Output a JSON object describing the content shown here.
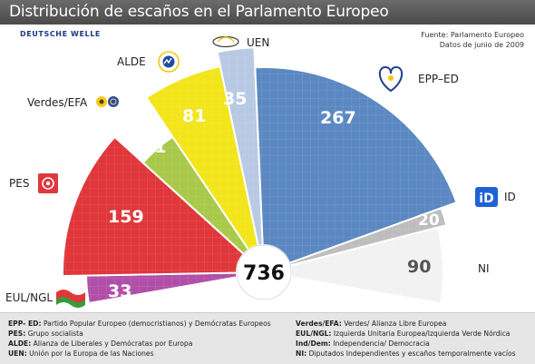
{
  "title": "Distribución de escaños en el Parlamento Europeo",
  "publisher": "DEUTSCHE WELLE",
  "source": [
    "Fuente: Parlamento Europeo",
    "Datos de junio de 2009"
  ],
  "chart_data": {
    "type": "pie",
    "title": "Distribución de escaños en el Parlamento Europeo",
    "total": 736,
    "total_label": "736",
    "series": [
      {
        "name": "EUL/NGL",
        "value": 33,
        "label": "33",
        "color": "#b14fa8"
      },
      {
        "name": "PES",
        "value": 159,
        "label": "159",
        "color": "#e0373a"
      },
      {
        "name": "Verdes/EFA",
        "value": 51,
        "label": "51",
        "color": "#a9c94a"
      },
      {
        "name": "ALDE",
        "value": 81,
        "label": "81",
        "color": "#f2e51a"
      },
      {
        "name": "UEN",
        "value": 35,
        "label": "35",
        "color": "#b8c9e3"
      },
      {
        "name": "EPP–ED",
        "value": 267,
        "label": "267",
        "color": "#5b88c1"
      },
      {
        "name": "ID",
        "value": 20,
        "label": "20",
        "color": "#bdbdbd"
      },
      {
        "name": "NI",
        "value": 90,
        "label": "90",
        "color": "#f2f2f2"
      }
    ]
  },
  "legend": {
    "col1": [
      {
        "abbr": "EPP- ED:",
        "text": "Partido Popular Europeo (democristianos) y Demócratas Europeos"
      },
      {
        "abbr": "PES:",
        "text": "Grupo socialista"
      },
      {
        "abbr": "ALDE:",
        "text": "Alianza de Liberales y Demócratas por Europa"
      },
      {
        "abbr": "UEN:",
        "text": "Unión por la Europa de las Naciones"
      }
    ],
    "col2": [
      {
        "abbr": "Verdes/EFA:",
        "text": "Verdes/ Alianza Libre Europea"
      },
      {
        "abbr": "EUL/NGL:",
        "text": "Izquierda Unitaria Europea/Izquierda Verde Nórdica"
      },
      {
        "abbr": "Ind/Dem:",
        "text": "Independencia/ Democracia"
      },
      {
        "abbr": "NI:",
        "text": "Diputados Independientes y escaños temporalmente vacíos"
      }
    ]
  },
  "logos": {
    "pes": "PES rose logo",
    "greens": "Greens sunflower logo",
    "alde": "ALDE logo",
    "uen": "UEN logo",
    "epp": "EPP heart logo",
    "id": "iD logo",
    "eul": "EUL/NGL flag logo"
  }
}
